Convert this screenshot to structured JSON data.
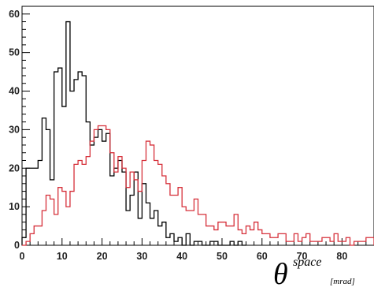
{
  "chart_data": {
    "type": "line",
    "step": true,
    "grid": false,
    "legend": "none",
    "xlim": [
      0,
      88
    ],
    "ylim": [
      0,
      62
    ],
    "bin_width": 1,
    "x_ticks": [
      "0",
      "10",
      "20",
      "30",
      "40",
      "50",
      "60",
      "70",
      "80"
    ],
    "y_ticks": [
      "0",
      "10",
      "20",
      "30",
      "40",
      "50",
      "60"
    ],
    "xlabel": {
      "main": "θ",
      "superscript": "space",
      "unit": "[mrad]"
    },
    "ylabel": "",
    "title": "",
    "series": [
      {
        "color": "#000000",
        "x_start": 0,
        "values": [
          2,
          20,
          20,
          20,
          22,
          33,
          30,
          17,
          45,
          46,
          36,
          58,
          40,
          43,
          45,
          44,
          32,
          26,
          28,
          30,
          27,
          29,
          18,
          20,
          22,
          19,
          9,
          13,
          19,
          7,
          16,
          11,
          7,
          9,
          5,
          6,
          2,
          3,
          1,
          2,
          0,
          3,
          0,
          1,
          1,
          0,
          0,
          1,
          1,
          0,
          0,
          0,
          1,
          0,
          1,
          0
        ]
      },
      {
        "color": "#d6303a",
        "x_start": 0,
        "values": [
          0,
          1,
          3,
          5,
          5,
          9,
          13,
          12,
          8,
          15,
          14,
          10,
          14,
          21,
          22,
          21,
          23,
          27,
          30,
          31,
          31,
          30,
          24,
          19,
          23,
          20,
          15,
          19,
          17,
          14,
          22,
          27,
          26,
          22,
          21,
          18,
          16,
          13,
          13,
          15,
          10,
          9,
          9,
          12,
          8,
          8,
          5,
          5,
          4,
          6,
          6,
          5,
          5,
          8,
          4,
          3,
          5,
          4,
          6,
          4,
          3,
          3,
          2,
          2,
          3,
          3,
          1,
          1,
          3,
          1,
          2,
          3,
          1,
          1,
          1,
          2,
          2,
          1,
          3,
          1,
          1,
          2,
          0,
          1,
          1,
          1,
          2,
          2
        ]
      }
    ]
  }
}
